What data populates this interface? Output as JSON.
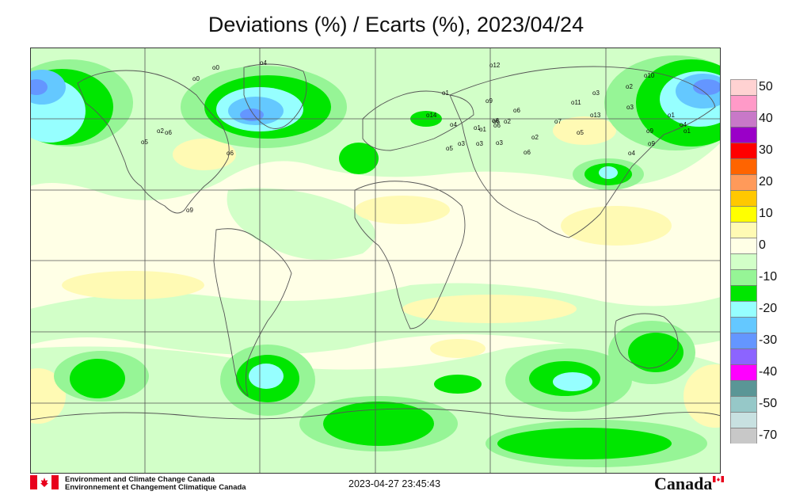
{
  "title": "Deviations (%) / Ecarts (%), 2023/04/24",
  "legend": {
    "items": [
      {
        "label": "50",
        "color": "#ffd2d2"
      },
      {
        "label": "",
        "color": "#ff9ac8"
      },
      {
        "label": "40",
        "color": "#c878c8"
      },
      {
        "label": "",
        "color": "#9a00c8"
      },
      {
        "label": "30",
        "color": "#ff0000"
      },
      {
        "label": "",
        "color": "#ff6400"
      },
      {
        "label": "20",
        "color": "#ff9a5a"
      },
      {
        "label": "",
        "color": "#ffc800"
      },
      {
        "label": "10",
        "color": "#ffff00"
      },
      {
        "label": "",
        "color": "#fffab4"
      },
      {
        "label": "0",
        "color": "#ffffe6"
      },
      {
        "label": "",
        "color": "#d2ffc8"
      },
      {
        "label": "-10",
        "color": "#96f596"
      },
      {
        "label": "",
        "color": "#00e600"
      },
      {
        "label": "-20",
        "color": "#96ffff"
      },
      {
        "label": "",
        "color": "#64c8ff"
      },
      {
        "label": "-30",
        "color": "#6496ff"
      },
      {
        "label": "",
        "color": "#8c64ff"
      },
      {
        "label": "-40",
        "color": "#ff00ff"
      },
      {
        "label": "",
        "color": "#5a9696"
      },
      {
        "label": "-50",
        "color": "#96c8c8"
      },
      {
        "label": "",
        "color": "#c8e1e1"
      },
      {
        "label": "-70",
        "color": "#c8c8c8"
      }
    ]
  },
  "stations": [
    "0",
    "0",
    "4",
    "6",
    "2",
    "5",
    "6",
    "9",
    "12",
    "1",
    "9",
    "6",
    "6",
    "11",
    "3",
    "10",
    "2",
    "3",
    "1",
    "14",
    "4",
    "1",
    "3",
    "3",
    "5",
    "13",
    "9",
    "6",
    "2",
    "4",
    "9",
    "1",
    "1",
    "7",
    "5",
    "3",
    "6",
    "6",
    "2",
    "4"
  ],
  "footer": {
    "org_en": "Environment and Climate Change Canada",
    "org_fr": "Environnement et Changement Climatique Canada",
    "timestamp": "2023-04-27 23:45:43",
    "wordmark": "Canada"
  },
  "colors": {
    "background": "#ffffe6",
    "light_yellow": "#fffab4",
    "light_green": "#d2ffc8",
    "mid_green": "#96f596",
    "green": "#00e600",
    "cyan": "#96ffff",
    "sky": "#64c8ff",
    "blue": "#6496ff",
    "flag_red": "#e8001c"
  }
}
